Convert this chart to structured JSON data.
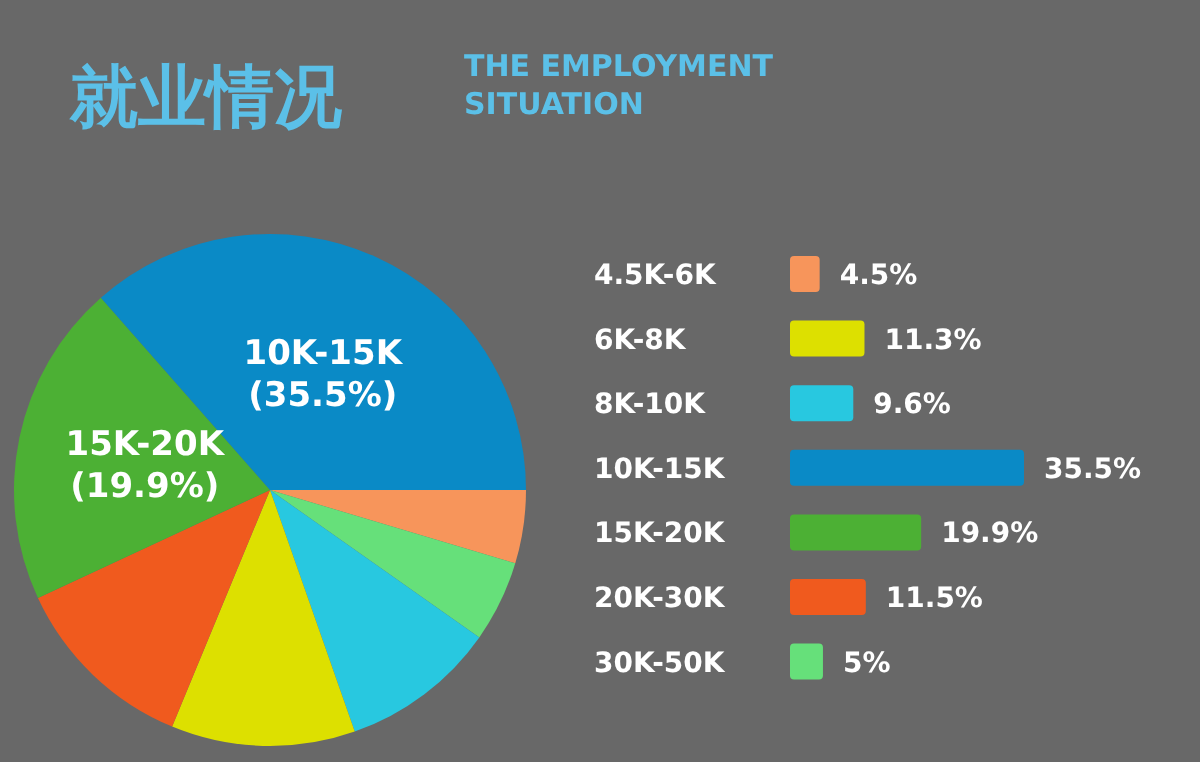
{
  "chart_data": [
    {
      "type": "pie",
      "title": "就业情况",
      "subtitle": "THE EMPLOYMENT SITUATION",
      "categories": [
        null,
        null,
        null,
        null,
        null,
        "15K-20K",
        "10K-15K"
      ],
      "values": [
        4.5,
        5,
        9.6,
        11.3,
        11.5,
        19.9,
        35.5
      ],
      "colors": [
        "#f7955b",
        "#66e07a",
        "#28c8e0",
        "#dde000",
        "#f05a1e",
        "#4cb034",
        "#0a8ac6"
      ],
      "value_labels": [
        null,
        null,
        null,
        null,
        null,
        "(19.9%)",
        "(35.5%)"
      ],
      "legend": false
    },
    {
      "type": "bar",
      "orientation": "horizontal",
      "categories": [
        "4.5K-6K",
        "6K-8K",
        "8K-10K",
        "10K-15K",
        "15K-20K",
        "20K-30K",
        "30K-50K"
      ],
      "values": [
        4.5,
        11.3,
        9.6,
        35.5,
        19.9,
        11.5,
        5
      ],
      "colors": [
        "#f7955b",
        "#dde000",
        "#28c8e0",
        "#0a8ac6",
        "#4cb034",
        "#f05a1e",
        "#66e07a"
      ],
      "value_labels": [
        "4.5%",
        "11.3%",
        "9.6%",
        "35.5%",
        "19.9%",
        "11.5%",
        "5%"
      ]
    }
  ]
}
